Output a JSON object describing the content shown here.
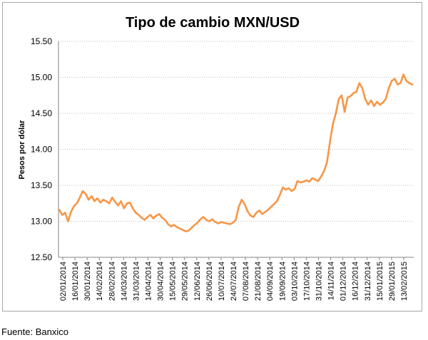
{
  "chart_data": {
    "type": "line",
    "title": "Tipo de cambio MXN/USD",
    "xlabel": "",
    "ylabel": "Pesos por dólar",
    "ylim": [
      12.5,
      15.5
    ],
    "yticks": [
      "12.50",
      "13.00",
      "13.50",
      "14.00",
      "14.50",
      "15.00",
      "15.50"
    ],
    "ytick_values": [
      12.5,
      13.0,
      13.5,
      14.0,
      14.5,
      15.0,
      15.5
    ],
    "grid": "horizontal dotted",
    "legend": "none",
    "xticks": [
      "02/01/2014",
      "16/01/2014",
      "30/01/2014",
      "14/02/2014",
      "28/02/2014",
      "14/03/2014",
      "31/03/2014",
      "14/04/2014",
      "30/04/2014",
      "15/05/2014",
      "29/05/2014",
      "12/06/2014",
      "26/06/2014",
      "10/07/2014",
      "24/07/2014",
      "07/08/2014",
      "21/08/2014",
      "04/09/2014",
      "19/09/2014",
      "03/10/2014",
      "17/10/2014",
      "31/10/2014",
      "14/11/2014",
      "01/12/2014",
      "16/12/2014",
      "31/12/2014",
      "15/01/2015",
      "29/01/2015",
      "13/02/2015"
    ],
    "series": [
      {
        "color": "#f79646",
        "values": [
          13.16,
          13.09,
          13.12,
          13.0,
          13.13,
          13.21,
          13.25,
          13.33,
          13.42,
          13.38,
          13.3,
          13.35,
          13.28,
          13.32,
          13.26,
          13.3,
          13.28,
          13.25,
          13.33,
          13.27,
          13.22,
          13.28,
          13.18,
          13.25,
          13.26,
          13.18,
          13.12,
          13.09,
          13.05,
          13.02,
          13.06,
          13.09,
          13.04,
          13.08,
          13.1,
          13.05,
          13.02,
          12.96,
          12.93,
          12.95,
          12.92,
          12.9,
          12.88,
          12.86,
          12.87,
          12.91,
          12.95,
          12.98,
          13.03,
          13.06,
          13.02,
          13.0,
          13.03,
          12.99,
          12.97,
          12.99,
          12.98,
          12.97,
          12.96,
          12.98,
          13.02,
          13.2,
          13.3,
          13.24,
          13.14,
          13.08,
          13.06,
          13.12,
          13.15,
          13.1,
          13.13,
          13.16,
          13.2,
          13.24,
          13.28,
          13.37,
          13.47,
          13.44,
          13.46,
          13.42,
          13.45,
          13.56,
          13.54,
          13.55,
          13.57,
          13.55,
          13.6,
          13.58,
          13.56,
          13.62,
          13.7,
          13.82,
          14.1,
          14.35,
          14.5,
          14.7,
          14.75,
          14.52,
          14.72,
          14.74,
          14.78,
          14.8,
          14.92,
          14.85,
          14.7,
          14.62,
          14.68,
          14.6,
          14.66,
          14.62,
          14.65,
          14.7,
          14.85,
          14.95,
          14.98,
          14.9,
          14.92,
          15.04,
          14.95,
          14.92,
          14.9
        ]
      }
    ]
  },
  "source_note": "Fuente: Banxico"
}
